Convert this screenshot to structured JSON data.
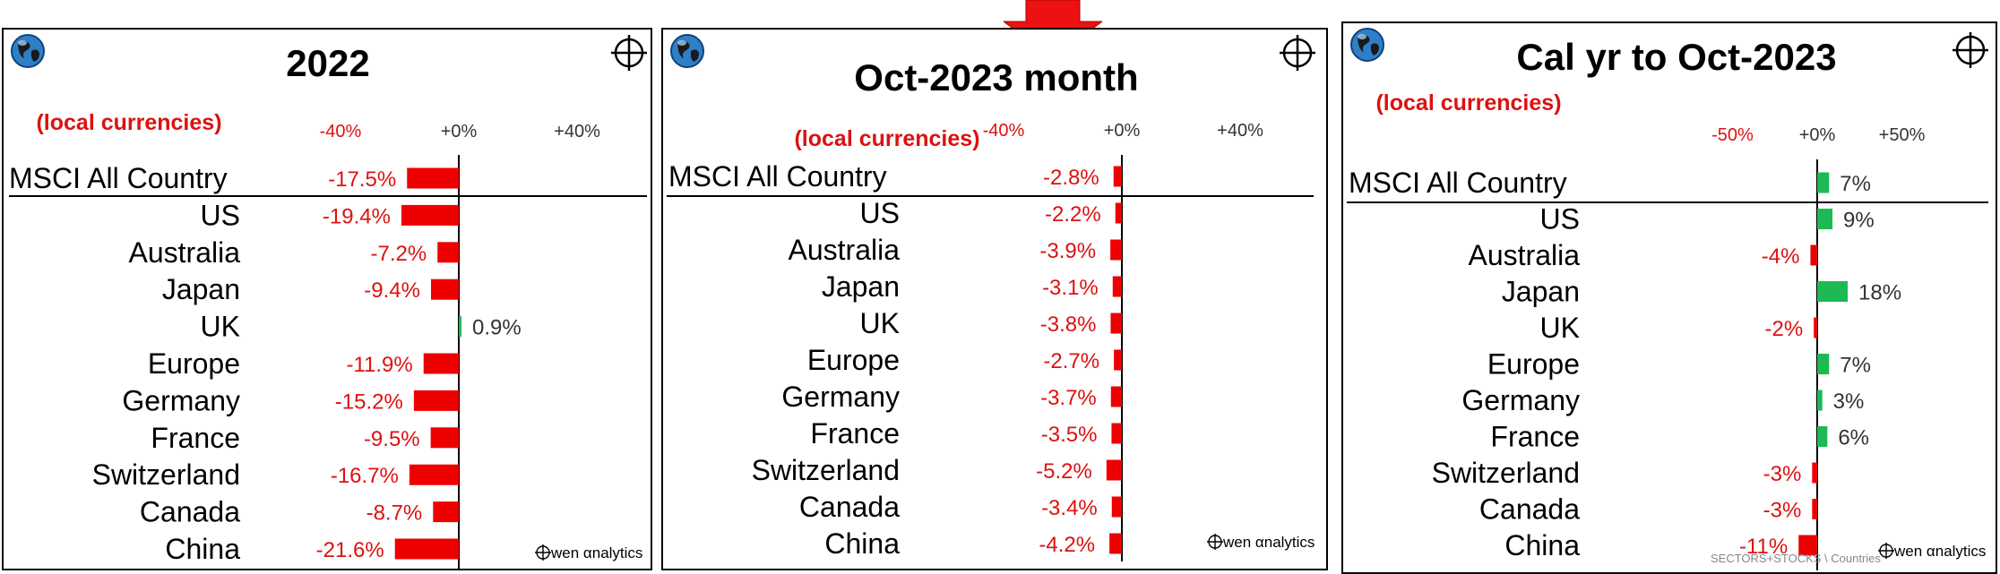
{
  "chart_data": [
    {
      "type": "bar",
      "title": "2022",
      "subtitle": "(local currencies)",
      "tick_labels": [
        "-40%",
        "+0%",
        "+40%"
      ],
      "xlim": [
        -40,
        40
      ],
      "categories": [
        "MSCI All Country",
        "US",
        "Australia",
        "Japan",
        "UK",
        "Europe",
        "Germany",
        "France",
        "Switzerland",
        "Canada",
        "China"
      ],
      "values": [
        -17.5,
        -19.4,
        -7.2,
        -9.4,
        0.9,
        -11.9,
        -15.2,
        -9.5,
        -16.7,
        -8.7,
        -21.6
      ],
      "value_labels": [
        "-17.5%",
        "-19.4%",
        "-7.2%",
        "-9.4%",
        "0.9%",
        "-11.9%",
        "-15.2%",
        "-9.5%",
        "-16.7%",
        "-8.7%",
        "-21.6%"
      ]
    },
    {
      "type": "bar",
      "title": "Oct-2023 month",
      "subtitle": "(local currencies)",
      "tick_labels": [
        "-40%",
        "+0%",
        "+40%"
      ],
      "xlim": [
        -40,
        40
      ],
      "categories": [
        "MSCI All Country",
        "US",
        "Australia",
        "Japan",
        "UK",
        "Europe",
        "Germany",
        "France",
        "Switzerland",
        "Canada",
        "China"
      ],
      "values": [
        -2.8,
        -2.2,
        -3.9,
        -3.1,
        -3.8,
        -2.7,
        -3.7,
        -3.5,
        -5.2,
        -3.4,
        -4.2
      ],
      "value_labels": [
        "-2.8%",
        "-2.2%",
        "-3.9%",
        "-3.1%",
        "-3.8%",
        "-2.7%",
        "-3.7%",
        "-3.5%",
        "-5.2%",
        "-3.4%",
        "-4.2%"
      ]
    },
    {
      "type": "bar",
      "title": "Cal yr to Oct-2023",
      "subtitle": "(local currencies)",
      "tick_labels": [
        "-50%",
        "+0%",
        "+50%"
      ],
      "xlim": [
        -50,
        50
      ],
      "categories": [
        "MSCI All Country",
        "US",
        "Australia",
        "Japan",
        "UK",
        "Europe",
        "Germany",
        "France",
        "Switzerland",
        "Canada",
        "China"
      ],
      "values": [
        7,
        9,
        -4,
        18,
        -2,
        7,
        3,
        6,
        -3,
        -3,
        -11
      ],
      "value_labels": [
        "7%",
        "9%",
        "-4%",
        "18%",
        "-2%",
        "7%",
        "3%",
        "6%",
        "-3%",
        "-3%",
        "-11%"
      ]
    }
  ],
  "colors": {
    "negative": "#ee0000",
    "positive": "#1db954",
    "accent_text": "#dd1111",
    "tick_text": "#333333",
    "value_positive_text": "#333333"
  },
  "branding": {
    "label": "wen αnalytics",
    "footer_path": "SECTORS+STOCKS \\ Countries"
  },
  "icons": [
    "globe-icon",
    "crosshair-icon",
    "down-arrow-icon"
  ]
}
